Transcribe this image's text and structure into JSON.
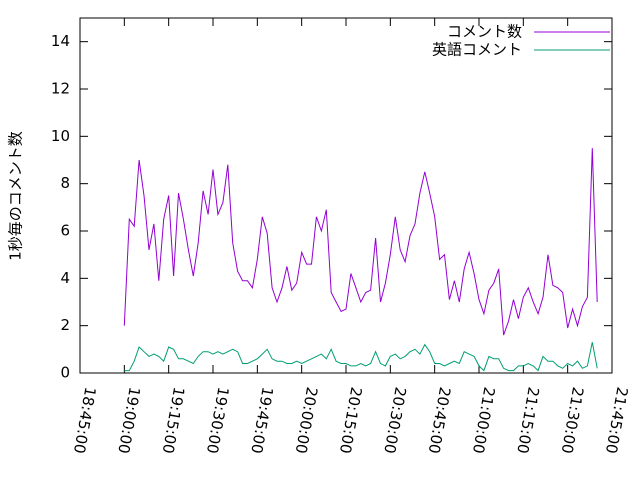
{
  "chart_data": {
    "type": "line",
    "ylabel": "1秒毎のコメント数",
    "x": [
      "19:00:00",
      "19:01:40",
      "19:03:20",
      "19:05:00",
      "19:06:40",
      "19:08:20",
      "19:10:00",
      "19:11:40",
      "19:13:20",
      "19:15:00",
      "19:16:40",
      "19:18:20",
      "19:20:00",
      "19:21:40",
      "19:23:20",
      "19:25:00",
      "19:26:40",
      "19:28:20",
      "19:30:00",
      "19:31:40",
      "19:33:20",
      "19:35:00",
      "19:36:40",
      "19:38:20",
      "19:40:00",
      "19:41:40",
      "19:43:20",
      "19:45:00",
      "19:46:40",
      "19:48:20",
      "19:50:00",
      "19:51:40",
      "19:53:20",
      "19:55:00",
      "19:56:40",
      "19:58:20",
      "20:00:00",
      "20:01:40",
      "20:03:20",
      "20:05:00",
      "20:06:40",
      "20:08:20",
      "20:10:00",
      "20:11:40",
      "20:13:20",
      "20:15:00",
      "20:16:40",
      "20:18:20",
      "20:20:00",
      "20:21:40",
      "20:23:20",
      "20:25:00",
      "20:26:40",
      "20:28:20",
      "20:30:00",
      "20:31:40",
      "20:33:20",
      "20:35:00",
      "20:36:40",
      "20:38:20",
      "20:40:00",
      "20:41:40",
      "20:43:20",
      "20:45:00",
      "20:46:40",
      "20:48:20",
      "20:50:00",
      "20:51:40",
      "20:53:20",
      "20:55:00",
      "20:56:40",
      "20:58:20",
      "21:00:00",
      "21:01:40",
      "21:03:20",
      "21:05:00",
      "21:06:40",
      "21:08:20",
      "21:10:00",
      "21:11:40",
      "21:13:20",
      "21:15:00",
      "21:16:40",
      "21:18:20",
      "21:20:00",
      "21:21:40",
      "21:23:20",
      "21:25:00",
      "21:26:40",
      "21:28:20",
      "21:30:00",
      "21:31:40",
      "21:33:20",
      "21:35:00",
      "21:36:40",
      "21:38:20",
      "21:40:00"
    ],
    "series": [
      {
        "name": "コメント数",
        "color": "#9400d3",
        "values": [
          2.0,
          6.5,
          6.2,
          9.0,
          7.5,
          5.2,
          6.3,
          3.9,
          6.5,
          7.5,
          4.1,
          7.6,
          6.5,
          5.2,
          4.1,
          5.5,
          7.7,
          6.7,
          8.6,
          6.7,
          7.2,
          8.8,
          5.5,
          4.3,
          3.9,
          3.9,
          3.6,
          4.8,
          6.6,
          5.9,
          3.6,
          3.0,
          3.6,
          4.5,
          3.5,
          3.8,
          5.1,
          4.6,
          4.6,
          6.6,
          6.0,
          6.9,
          3.4,
          3.0,
          2.6,
          2.7,
          4.2,
          3.6,
          3.0,
          3.4,
          3.5,
          5.7,
          3.0,
          3.8,
          5.0,
          6.6,
          5.2,
          4.7,
          5.8,
          6.3,
          7.6,
          8.5,
          7.6,
          6.6,
          4.8,
          5.0,
          3.1,
          3.9,
          3.0,
          4.4,
          5.1,
          4.2,
          3.1,
          2.5,
          3.5,
          3.8,
          4.4,
          1.6,
          2.2,
          3.1,
          2.3,
          3.2,
          3.6,
          3.0,
          2.5,
          3.2,
          5.0,
          3.7,
          3.6,
          3.4,
          1.9,
          2.7,
          2.0,
          2.8,
          3.2,
          9.5,
          3.0
        ]
      },
      {
        "name": "英語コメント",
        "color": "#009e73",
        "values": [
          0.1,
          0.1,
          0.5,
          1.1,
          0.9,
          0.7,
          0.8,
          0.7,
          0.5,
          1.1,
          1.0,
          0.6,
          0.6,
          0.5,
          0.4,
          0.7,
          0.9,
          0.9,
          0.8,
          0.9,
          0.8,
          0.9,
          1.0,
          0.9,
          0.4,
          0.4,
          0.5,
          0.6,
          0.8,
          1.0,
          0.6,
          0.5,
          0.5,
          0.4,
          0.4,
          0.5,
          0.4,
          0.5,
          0.6,
          0.7,
          0.8,
          0.6,
          1.0,
          0.5,
          0.4,
          0.4,
          0.3,
          0.3,
          0.4,
          0.3,
          0.4,
          0.9,
          0.4,
          0.3,
          0.7,
          0.8,
          0.6,
          0.7,
          0.9,
          1.0,
          0.8,
          1.2,
          0.9,
          0.4,
          0.4,
          0.3,
          0.4,
          0.5,
          0.4,
          0.9,
          0.8,
          0.7,
          0.3,
          0.1,
          0.7,
          0.6,
          0.6,
          0.2,
          0.1,
          0.1,
          0.3,
          0.3,
          0.4,
          0.3,
          0.1,
          0.7,
          0.5,
          0.5,
          0.3,
          0.2,
          0.4,
          0.3,
          0.5,
          0.2,
          0.3,
          1.3,
          0.2
        ]
      }
    ],
    "xlim": [
      "18:45:00",
      "21:45:00"
    ],
    "xticks": [
      "18:45:00",
      "19:00:00",
      "19:15:00",
      "19:30:00",
      "19:45:00",
      "20:00:00",
      "20:15:00",
      "20:30:00",
      "20:45:00",
      "21:00:00",
      "21:15:00",
      "21:30:00",
      "21:45:00"
    ],
    "ylim": [
      0,
      15
    ],
    "yticks": [
      0,
      2,
      4,
      6,
      8,
      10,
      12,
      14
    ],
    "legend": "top-right"
  }
}
